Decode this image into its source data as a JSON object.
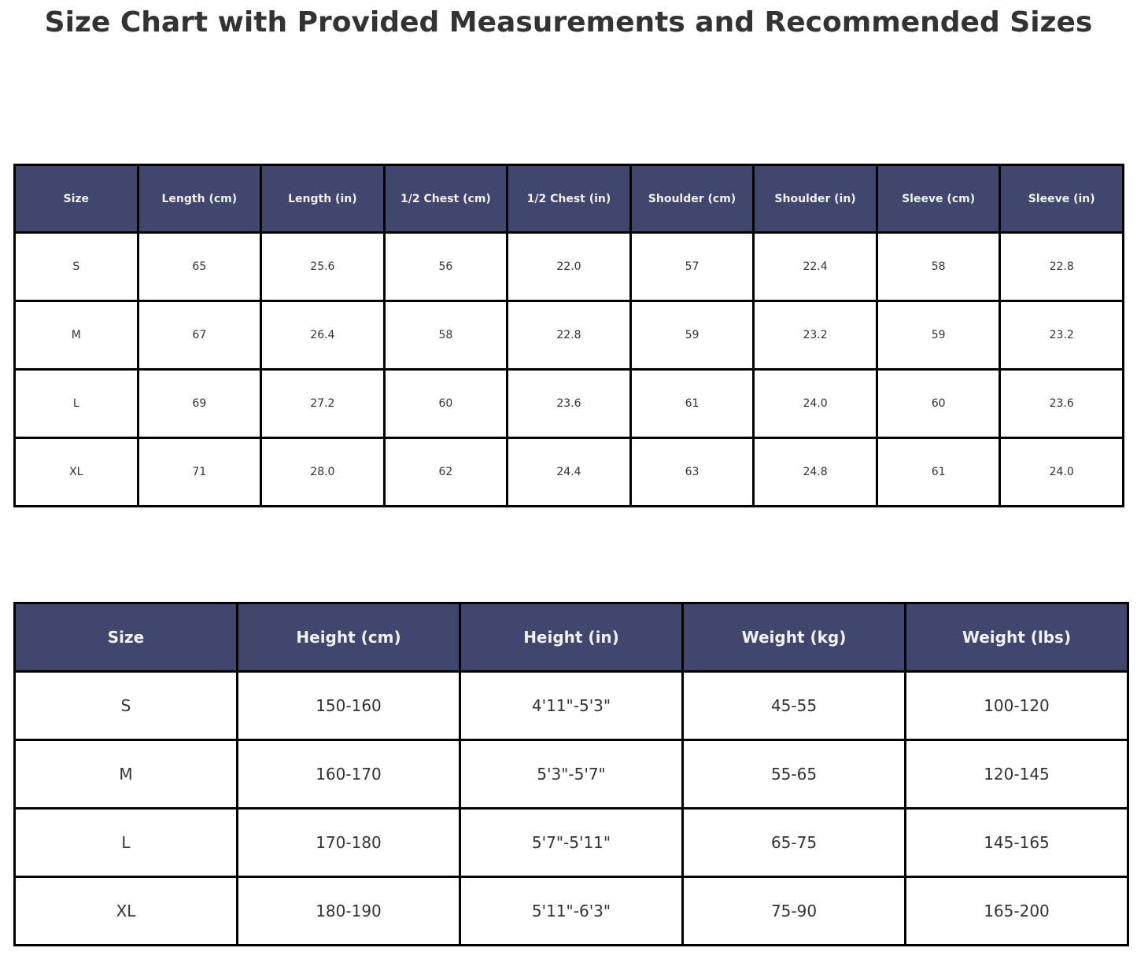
{
  "page": {
    "title": "Size Chart with Provided Measurements and Recommended Sizes"
  },
  "colors": {
    "header_bg": "#40466e",
    "header_text": "#f1f1f2",
    "cell_text": "#333333",
    "border": "#000000",
    "title_text": "#333333",
    "page_bg": "#ffffff"
  },
  "chart_data": [
    {
      "type": "table",
      "name": "provided_measurements",
      "headers": [
        "Size",
        "Length (cm)",
        "Length (in)",
        "1/2 Chest (cm)",
        "1/2 Chest (in)",
        "Shoulder (cm)",
        "Shoulder (in)",
        "Sleeve (cm)",
        "Sleeve (in)"
      ],
      "rows": [
        [
          "S",
          "65",
          "25.6",
          "56",
          "22.0",
          "57",
          "22.4",
          "58",
          "22.8"
        ],
        [
          "M",
          "67",
          "26.4",
          "58",
          "22.8",
          "59",
          "23.2",
          "59",
          "23.2"
        ],
        [
          "L",
          "69",
          "27.2",
          "60",
          "23.6",
          "61",
          "24.0",
          "60",
          "23.6"
        ],
        [
          "XL",
          "71",
          "28.0",
          "62",
          "24.4",
          "63",
          "24.8",
          "61",
          "24.0"
        ]
      ]
    },
    {
      "type": "table",
      "name": "recommended_sizes",
      "headers": [
        "Size",
        "Height (cm)",
        "Height (in)",
        "Weight (kg)",
        "Weight (lbs)"
      ],
      "rows": [
        [
          "S",
          "150-160",
          "4'11\"-5'3\"",
          "45-55",
          "100-120"
        ],
        [
          "M",
          "160-170",
          "5'3\"-5'7\"",
          "55-65",
          "120-145"
        ],
        [
          "L",
          "170-180",
          "5'7\"-5'11\"",
          "65-75",
          "145-165"
        ],
        [
          "XL",
          "180-190",
          "5'11\"-6'3\"",
          "75-90",
          "165-200"
        ]
      ]
    }
  ]
}
